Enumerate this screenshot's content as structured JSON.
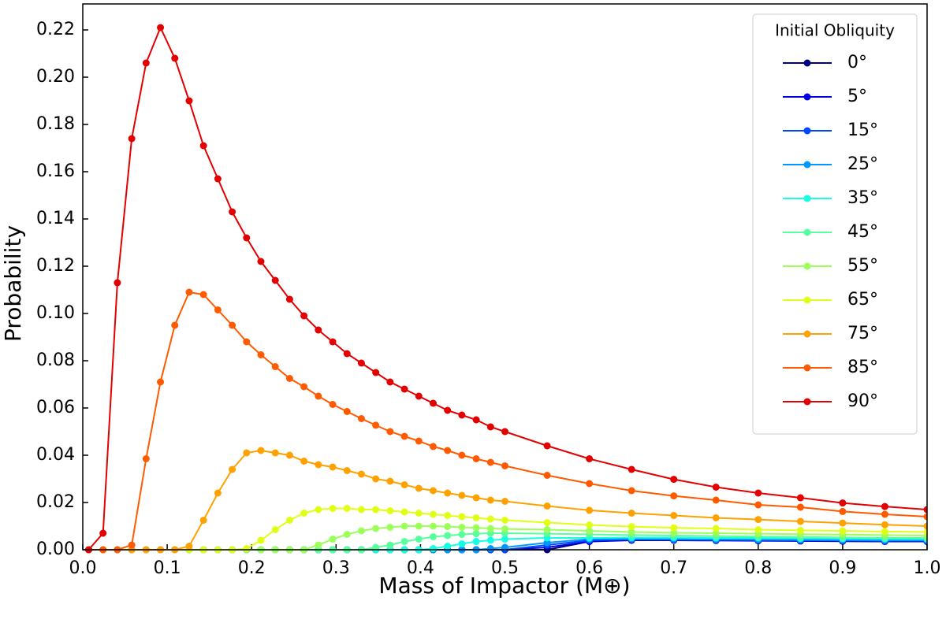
{
  "chart_data": {
    "type": "line",
    "xlabel": "Mass of Impactor (M⊕)",
    "ylabel": "Probability",
    "legend_title": "Initial Obliquity",
    "legend": "upper right",
    "xlim": [
      0,
      1
    ],
    "ylim": [
      0,
      0.231
    ],
    "xticks": [
      {
        "value": 0,
        "label": "0.0"
      },
      0.1,
      0.2,
      0.3,
      0.4,
      0.5,
      0.6,
      0.7,
      0.8,
      0.9,
      {
        "value": 1,
        "label": "1.0"
      }
    ],
    "yticks": [
      {
        "value": 0,
        "label": "0.00"
      },
      {
        "value": 0.02,
        "label": "0.02"
      },
      {
        "value": 0.04,
        "label": "0.04"
      },
      {
        "value": 0.06,
        "label": "0.06"
      },
      {
        "value": 0.08,
        "label": "0.08"
      },
      {
        "value": 0.1,
        "label": "0.10"
      },
      {
        "value": 0.12,
        "label": "0.12"
      },
      {
        "value": 0.14,
        "label": "0.14"
      },
      {
        "value": 0.16,
        "label": "0.16"
      },
      {
        "value": 0.18,
        "label": "0.18"
      },
      {
        "value": 0.2,
        "label": "0.20"
      },
      {
        "value": 0.22,
        "label": "0.22"
      }
    ],
    "x": [
      0.007,
      0.024,
      0.041,
      0.058,
      0.075,
      0.092,
      0.109,
      0.126,
      0.143,
      0.16,
      0.177,
      0.194,
      0.211,
      0.228,
      0.245,
      0.262,
      0.279,
      0.296,
      0.313,
      0.33,
      0.347,
      0.364,
      0.381,
      0.398,
      0.415,
      0.432,
      0.449,
      0.466,
      0.483,
      0.5,
      0.55,
      0.6,
      0.65,
      0.7,
      0.75,
      0.8,
      0.85,
      0.9,
      0.95,
      1.0
    ],
    "series": [
      {
        "name": "0°",
        "color": "#00007f",
        "values": [
          0,
          0,
          0,
          0,
          0,
          0,
          0,
          0,
          0,
          0,
          0,
          0,
          0,
          0,
          0,
          0,
          0,
          0,
          0,
          0,
          0,
          0,
          0,
          0,
          0,
          0,
          0,
          0,
          0,
          0,
          0,
          0.0035,
          0.004,
          0.004,
          0.0039,
          0.0038,
          0.0037,
          0.0036,
          0.0035,
          0.0035
        ]
      },
      {
        "name": "5°",
        "color": "#0000ee",
        "values": [
          0,
          0,
          0,
          0,
          0,
          0,
          0,
          0,
          0,
          0,
          0,
          0,
          0,
          0,
          0,
          0,
          0,
          0,
          0,
          0,
          0,
          0,
          0,
          0,
          0,
          0,
          0,
          0,
          0,
          0,
          0.001,
          0.0035,
          0.0042,
          0.0041,
          0.004,
          0.0039,
          0.0038,
          0.0037,
          0.0036,
          0.0035
        ]
      },
      {
        "name": "15°",
        "color": "#0048ff",
        "values": [
          0,
          0,
          0,
          0,
          0,
          0,
          0,
          0,
          0,
          0,
          0,
          0,
          0,
          0,
          0,
          0,
          0,
          0,
          0,
          0,
          0,
          0,
          0,
          0,
          0,
          0,
          0,
          0,
          0,
          0,
          0.002,
          0.004,
          0.0045,
          0.0043,
          0.0042,
          0.0041,
          0.004,
          0.0039,
          0.0038,
          0.0038
        ]
      },
      {
        "name": "25°",
        "color": "#0098ff",
        "values": [
          0,
          0,
          0,
          0,
          0,
          0,
          0,
          0,
          0,
          0,
          0,
          0,
          0,
          0,
          0,
          0,
          0,
          0,
          0,
          0,
          0,
          0,
          0,
          0,
          0,
          0,
          0,
          0,
          0.0005,
          0.001,
          0.003,
          0.0045,
          0.0045,
          0.0045,
          0.0044,
          0.0043,
          0.0042,
          0.0041,
          0.004,
          0.004
        ]
      },
      {
        "name": "35°",
        "color": "#16ffe1",
        "values": [
          0,
          0,
          0,
          0,
          0,
          0,
          0,
          0,
          0,
          0,
          0,
          0,
          0,
          0,
          0,
          0,
          0,
          0,
          0,
          0,
          0,
          0,
          0,
          0,
          0.0005,
          0.0015,
          0.0025,
          0.0035,
          0.004,
          0.0045,
          0.005,
          0.005,
          0.0052,
          0.0052,
          0.005,
          0.005,
          0.0048,
          0.0047,
          0.0046,
          0.0045
        ]
      },
      {
        "name": "45°",
        "color": "#5aff9d",
        "values": [
          0,
          0,
          0,
          0,
          0,
          0,
          0,
          0,
          0,
          0,
          0,
          0,
          0,
          0,
          0,
          0,
          0,
          0,
          0,
          0,
          0.001,
          0.002,
          0.0035,
          0.0045,
          0.0055,
          0.006,
          0.0065,
          0.0068,
          0.007,
          0.007,
          0.0068,
          0.0065,
          0.0062,
          0.006,
          0.0058,
          0.0056,
          0.0054,
          0.0052,
          0.0051,
          0.005
        ]
      },
      {
        "name": "55°",
        "color": "#9dff5a",
        "values": [
          0,
          0,
          0,
          0,
          0,
          0,
          0,
          0,
          0,
          0,
          0,
          0,
          0,
          0,
          0,
          0,
          0.002,
          0.0045,
          0.0065,
          0.008,
          0.009,
          0.0095,
          0.01,
          0.01,
          0.01,
          0.0098,
          0.0095,
          0.0093,
          0.009,
          0.0088,
          0.0085,
          0.008,
          0.0075,
          0.0072,
          0.007,
          0.0068,
          0.0066,
          0.0064,
          0.0062,
          0.006
        ]
      },
      {
        "name": "65°",
        "color": "#e1ff16",
        "values": [
          0,
          0,
          0,
          0,
          0,
          0,
          0,
          0,
          0,
          0,
          0,
          0.0005,
          0.004,
          0.0085,
          0.0125,
          0.0155,
          0.017,
          0.0175,
          0.0175,
          0.017,
          0.017,
          0.0165,
          0.016,
          0.0155,
          0.015,
          0.0145,
          0.014,
          0.0135,
          0.013,
          0.0125,
          0.0115,
          0.0105,
          0.0098,
          0.0093,
          0.009,
          0.0085,
          0.0082,
          0.008,
          0.0077,
          0.0075
        ]
      },
      {
        "name": "75°",
        "color": "#ffa100",
        "values": [
          0,
          0,
          0,
          0,
          0,
          0,
          0,
          0.0015,
          0.0125,
          0.024,
          0.034,
          0.041,
          0.042,
          0.041,
          0.04,
          0.0375,
          0.036,
          0.035,
          0.0335,
          0.032,
          0.03,
          0.029,
          0.0275,
          0.026,
          0.025,
          0.024,
          0.023,
          0.022,
          0.021,
          0.0205,
          0.0185,
          0.0167,
          0.0155,
          0.0145,
          0.0135,
          0.0128,
          0.012,
          0.0113,
          0.0106,
          0.01
        ]
      },
      {
        "name": "85°",
        "color": "#ff5a00",
        "values": [
          0,
          0,
          0,
          0.002,
          0.0385,
          0.071,
          0.095,
          0.109,
          0.108,
          0.1015,
          0.095,
          0.088,
          0.0825,
          0.0775,
          0.0725,
          0.069,
          0.065,
          0.0615,
          0.0585,
          0.0555,
          0.0527,
          0.05,
          0.048,
          0.046,
          0.0437,
          0.042,
          0.04,
          0.0385,
          0.037,
          0.0355,
          0.0315,
          0.028,
          0.025,
          0.0228,
          0.021,
          0.019,
          0.018,
          0.0162,
          0.015,
          0.014
        ]
      },
      {
        "name": "90°",
        "color": "#e30000",
        "values": [
          0,
          0.007,
          0.113,
          0.174,
          0.206,
          0.221,
          0.208,
          0.19,
          0.171,
          0.157,
          0.143,
          0.132,
          0.122,
          0.114,
          0.106,
          0.099,
          0.093,
          0.088,
          0.083,
          0.079,
          0.075,
          0.071,
          0.068,
          0.065,
          0.062,
          0.059,
          0.057,
          0.055,
          0.052,
          0.05,
          0.044,
          0.0385,
          0.034,
          0.0298,
          0.0265,
          0.024,
          0.022,
          0.0198,
          0.0183,
          0.017
        ]
      }
    ]
  }
}
